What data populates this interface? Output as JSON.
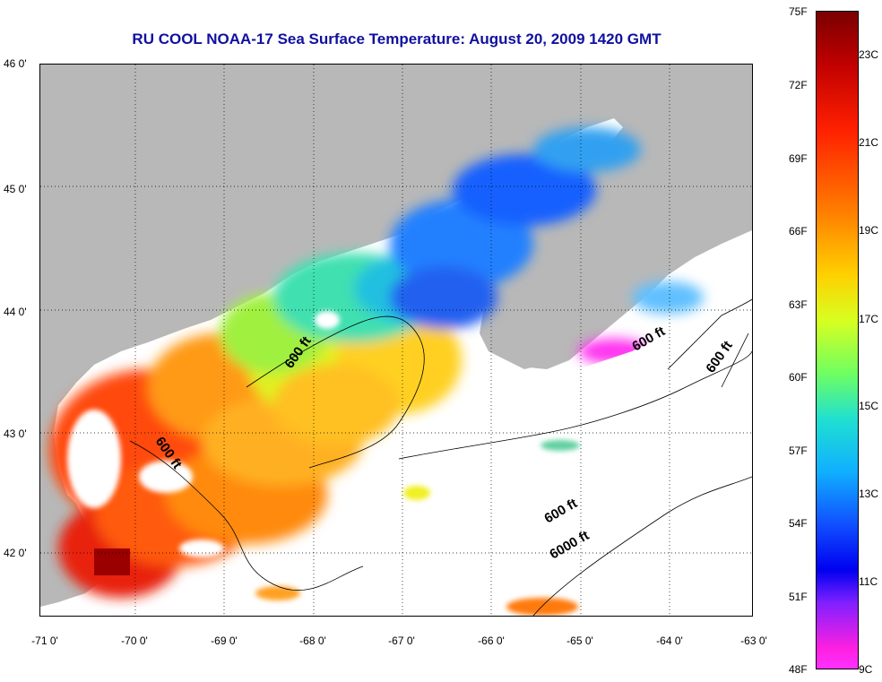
{
  "title": "RU COOL  NOAA-17  Sea Surface Temperature:  August 20, 2009 1420 GMT",
  "lat_labels": [
    "46 0'",
    "45 0'",
    "44 0'",
    "43 0'",
    "42 0'"
  ],
  "lon_labels": [
    "-71 0'",
    "-70 0'",
    "-69 0'",
    "-68 0'",
    "-67 0'",
    "-66 0'",
    "-65 0'",
    "-64 0'",
    "-63 0'"
  ],
  "colorbar": {
    "fahrenheit": [
      "75F",
      "72F",
      "69F",
      "66F",
      "63F",
      "60F",
      "57F",
      "54F",
      "51F",
      "48F"
    ],
    "celsius": [
      "23C",
      "21C",
      "19C",
      "17C",
      "15C",
      "13C",
      "11C",
      "9C"
    ]
  },
  "contour_labels": [
    "600 ft",
    "600 ft",
    "600 ft",
    "600 ft",
    "600 ft",
    "6000 ft"
  ],
  "colors": {
    "land": "#b8b8b8",
    "title": "#1010a0",
    "no_data": "#ffffff"
  }
}
